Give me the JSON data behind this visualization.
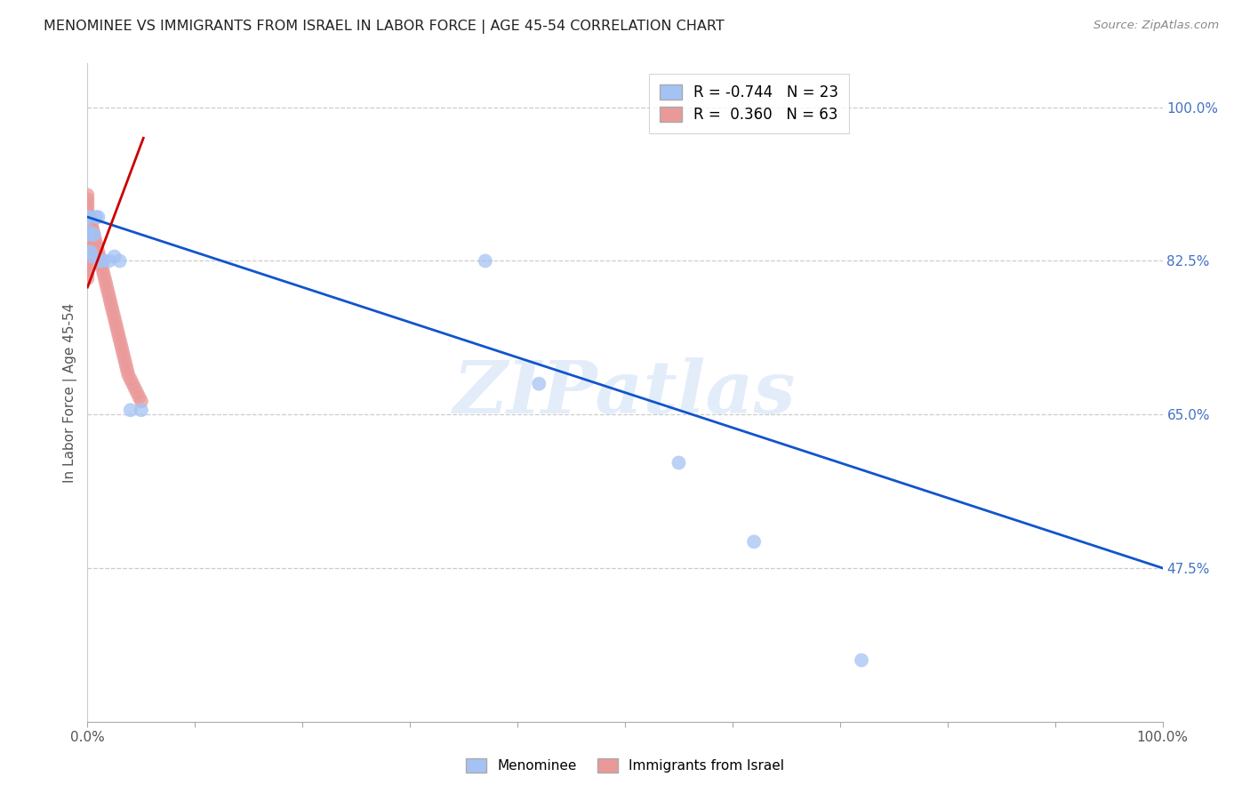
{
  "title": "MENOMINEE VS IMMIGRANTS FROM ISRAEL IN LABOR FORCE | AGE 45-54 CORRELATION CHART",
  "source": "Source: ZipAtlas.com",
  "ylabel": "In Labor Force | Age 45-54",
  "xlim": [
    0.0,
    1.0
  ],
  "ylim": [
    0.3,
    1.05
  ],
  "xtick_positions": [
    0.0,
    0.1,
    0.2,
    0.3,
    0.4,
    0.5,
    0.6,
    0.7,
    0.8,
    0.9,
    1.0
  ],
  "xticklabels_show": [
    "0.0%",
    "",
    "",
    "",
    "",
    "",
    "",
    "",
    "",
    "",
    "100.0%"
  ],
  "ytick_positions": [
    0.475,
    0.65,
    0.825,
    1.0
  ],
  "ytick_labels": [
    "47.5%",
    "65.0%",
    "82.5%",
    "100.0%"
  ],
  "legend_blue_R": "-0.744",
  "legend_blue_N": "23",
  "legend_pink_R": "0.360",
  "legend_pink_N": "63",
  "blue_color": "#a4c2f4",
  "pink_color": "#ea9999",
  "blue_line_color": "#1155cc",
  "pink_line_color": "#cc0000",
  "watermark": "ZIPatlas",
  "menominee_x": [
    0.0,
    0.0,
    0.0,
    0.001,
    0.002,
    0.003,
    0.004,
    0.005,
    0.006,
    0.008,
    0.01,
    0.012,
    0.015,
    0.02,
    0.025,
    0.03,
    0.04,
    0.05,
    0.37,
    0.42,
    0.55,
    0.62,
    0.72
  ],
  "menominee_y": [
    0.875,
    0.86,
    0.855,
    0.875,
    0.835,
    0.835,
    0.83,
    0.855,
    0.855,
    0.875,
    0.875,
    0.825,
    0.825,
    0.825,
    0.83,
    0.825,
    0.655,
    0.655,
    0.825,
    0.685,
    0.595,
    0.505,
    0.37
  ],
  "israel_x": [
    0.0,
    0.0,
    0.0,
    0.0,
    0.0,
    0.0,
    0.0,
    0.0,
    0.0,
    0.0,
    0.0,
    0.0,
    0.0,
    0.0,
    0.0,
    0.0,
    0.0,
    0.0,
    0.0,
    0.0,
    0.002,
    0.003,
    0.004,
    0.005,
    0.006,
    0.007,
    0.008,
    0.009,
    0.01,
    0.011,
    0.012,
    0.013,
    0.014,
    0.015,
    0.016,
    0.017,
    0.018,
    0.019,
    0.02,
    0.021,
    0.022,
    0.023,
    0.024,
    0.025,
    0.026,
    0.027,
    0.028,
    0.029,
    0.03,
    0.031,
    0.032,
    0.033,
    0.034,
    0.035,
    0.036,
    0.037,
    0.038,
    0.04,
    0.042,
    0.044,
    0.046,
    0.048,
    0.05
  ],
  "israel_y": [
    0.9,
    0.895,
    0.89,
    0.885,
    0.88,
    0.875,
    0.87,
    0.865,
    0.86,
    0.855,
    0.85,
    0.845,
    0.84,
    0.835,
    0.83,
    0.825,
    0.82,
    0.815,
    0.81,
    0.805,
    0.875,
    0.87,
    0.865,
    0.86,
    0.855,
    0.85,
    0.845,
    0.84,
    0.835,
    0.83,
    0.825,
    0.82,
    0.815,
    0.81,
    0.805,
    0.8,
    0.795,
    0.79,
    0.785,
    0.78,
    0.775,
    0.77,
    0.765,
    0.76,
    0.755,
    0.75,
    0.745,
    0.74,
    0.735,
    0.73,
    0.725,
    0.72,
    0.715,
    0.71,
    0.705,
    0.7,
    0.695,
    0.69,
    0.685,
    0.68,
    0.675,
    0.67,
    0.665
  ],
  "blue_line_x": [
    0.0,
    1.0
  ],
  "blue_line_y": [
    0.875,
    0.475
  ],
  "pink_line_x": [
    0.0,
    0.052
  ],
  "pink_line_y": [
    0.795,
    0.965
  ]
}
